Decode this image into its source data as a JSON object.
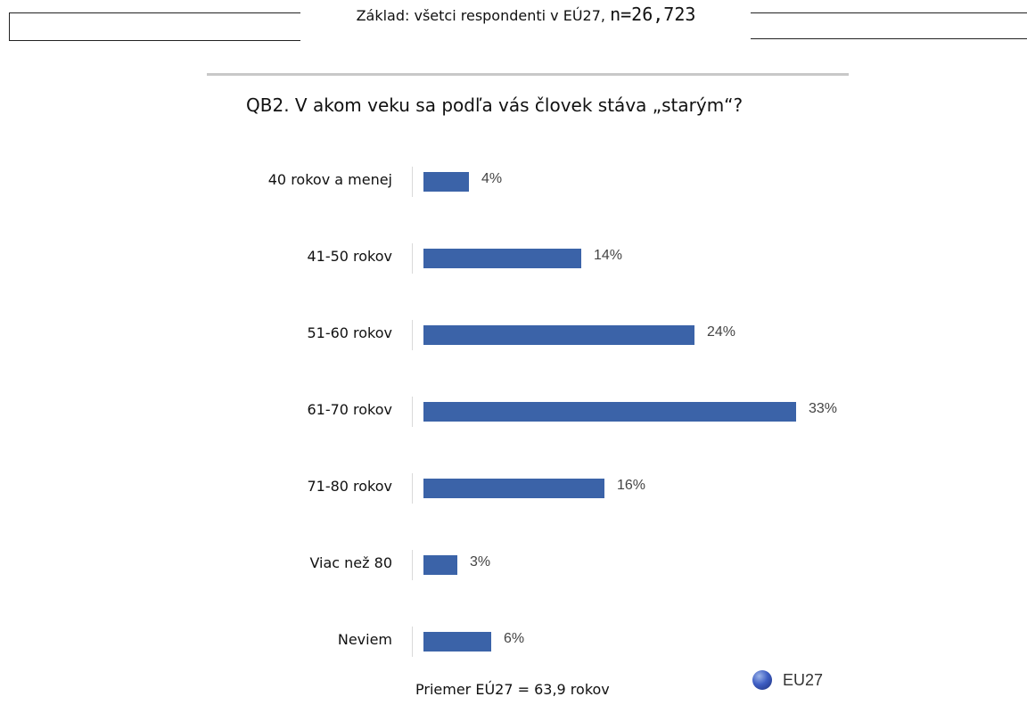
{
  "header": {
    "base_text": "Základ: všetci respondenti v EÚ27, ",
    "base_n": "n=26,723"
  },
  "question": "QB2. V akom veku sa podľa vás človek stáva „starým“?",
  "footer": {
    "average": "Priemer EÚ27 = 63,9 rokov"
  },
  "legend": {
    "label": "EU27",
    "color": "#3b63a8",
    "icon": "eu-flag-icon"
  },
  "chart_data": {
    "type": "bar",
    "orientation": "horizontal",
    "categories": [
      "40 rokov a menej",
      "41-50 rokov",
      "51-60 rokov",
      "61-70 rokov",
      "71-80 rokov",
      "Viac než 80",
      "Neviem"
    ],
    "series": [
      {
        "name": "EU27",
        "values": [
          4,
          14,
          24,
          33,
          16,
          3,
          6
        ]
      }
    ],
    "value_labels": [
      "4%",
      "14%",
      "24%",
      "33%",
      "16%",
      "3%",
      "6%"
    ],
    "unit": "%",
    "xlim": [
      0,
      33
    ],
    "grid": false,
    "legend_position": "bottom-right",
    "bar_color": "#3b63a8"
  }
}
